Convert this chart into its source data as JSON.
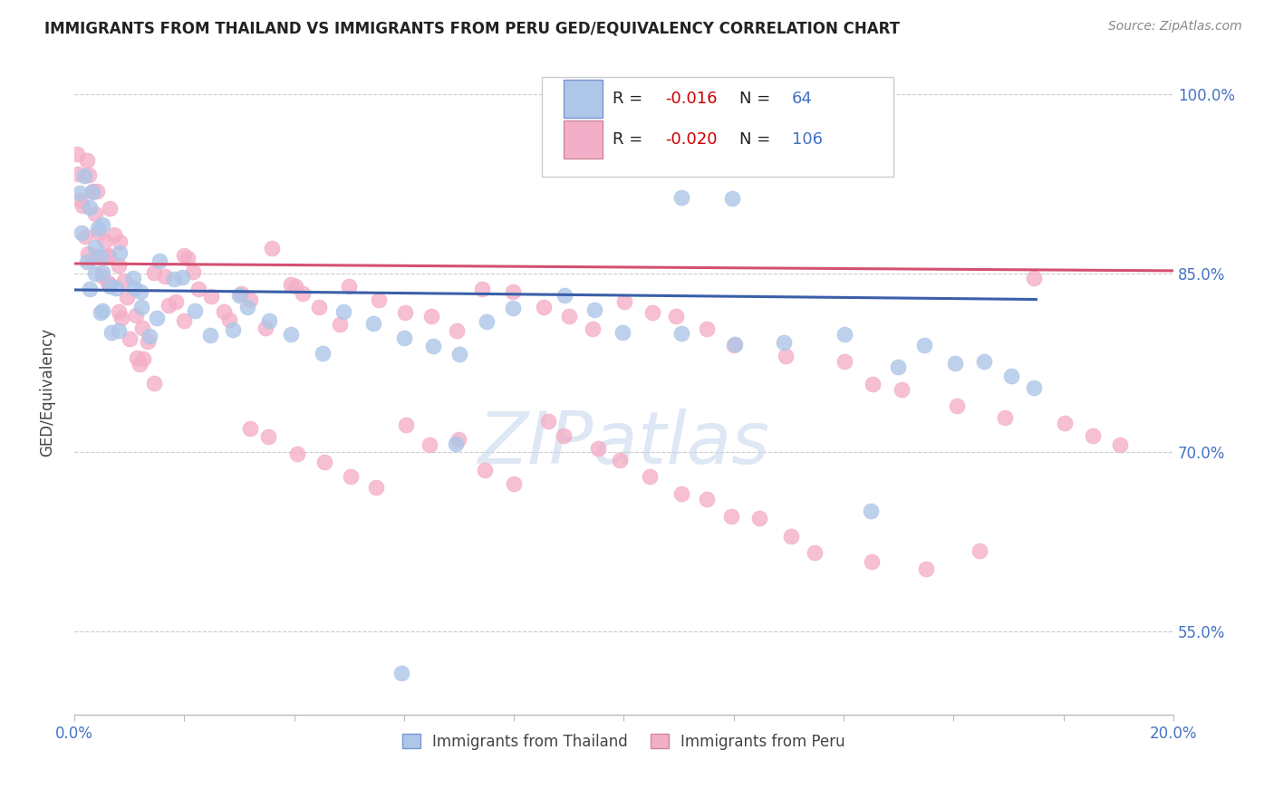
{
  "title": "IMMIGRANTS FROM THAILAND VS IMMIGRANTS FROM PERU GED/EQUIVALENCY CORRELATION CHART",
  "source_text": "Source: ZipAtlas.com",
  "ylabel": "GED/Equivalency",
  "xlim": [
    0.0,
    0.2
  ],
  "ylim": [
    0.48,
    1.02
  ],
  "ytick_positions": [
    0.55,
    0.7,
    0.85,
    1.0
  ],
  "ytick_labels": [
    "55.0%",
    "70.0%",
    "85.0%",
    "100.0%"
  ],
  "thailand_R": -0.016,
  "thailand_N": 64,
  "peru_R": -0.02,
  "peru_N": 106,
  "thailand_color": "#aec6e8",
  "peru_color": "#f4afc8",
  "thailand_line_color": "#3a5fa8",
  "peru_line_color": "#d45070",
  "watermark": "ZIPatlas",
  "background_color": "#ffffff",
  "th_line_x": [
    0.0,
    0.175
  ],
  "th_line_y": [
    0.836,
    0.828
  ],
  "peru_line_x": [
    0.0,
    0.2
  ],
  "peru_line_y": [
    0.858,
    0.852
  ],
  "thailand_pts_x": [
    0.001,
    0.001,
    0.002,
    0.002,
    0.002,
    0.003,
    0.003,
    0.003,
    0.004,
    0.004,
    0.005,
    0.005,
    0.005,
    0.006,
    0.006,
    0.007,
    0.007,
    0.008,
    0.008,
    0.009,
    0.01,
    0.011,
    0.012,
    0.013,
    0.014,
    0.015,
    0.016,
    0.018,
    0.02,
    0.022,
    0.025,
    0.028,
    0.03,
    0.032,
    0.035,
    0.04,
    0.045,
    0.05,
    0.055,
    0.06,
    0.065,
    0.07,
    0.075,
    0.08,
    0.09,
    0.095,
    0.1,
    0.11,
    0.12,
    0.13,
    0.14,
    0.15,
    0.155,
    0.16,
    0.165,
    0.17,
    0.175,
    0.09,
    0.095,
    0.11,
    0.12,
    0.145,
    0.06,
    0.07
  ],
  "thailand_pts_y": [
    0.88,
    0.91,
    0.86,
    0.9,
    0.93,
    0.84,
    0.87,
    0.91,
    0.85,
    0.88,
    0.83,
    0.86,
    0.89,
    0.82,
    0.85,
    0.81,
    0.84,
    0.8,
    0.83,
    0.87,
    0.85,
    0.84,
    0.83,
    0.82,
    0.8,
    0.81,
    0.86,
    0.84,
    0.85,
    0.82,
    0.8,
    0.81,
    0.83,
    0.82,
    0.81,
    0.8,
    0.79,
    0.82,
    0.81,
    0.8,
    0.79,
    0.78,
    0.8,
    0.82,
    0.83,
    0.82,
    0.81,
    0.8,
    0.79,
    0.78,
    0.8,
    0.77,
    0.79,
    0.78,
    0.77,
    0.76,
    0.75,
    0.96,
    0.95,
    0.92,
    0.91,
    0.64,
    0.52,
    0.71
  ],
  "peru_pts_x": [
    0.001,
    0.001,
    0.001,
    0.002,
    0.002,
    0.002,
    0.003,
    0.003,
    0.003,
    0.004,
    0.004,
    0.004,
    0.005,
    0.005,
    0.005,
    0.006,
    0.006,
    0.006,
    0.007,
    0.007,
    0.007,
    0.008,
    0.008,
    0.008,
    0.009,
    0.009,
    0.01,
    0.01,
    0.011,
    0.011,
    0.012,
    0.012,
    0.013,
    0.013,
    0.014,
    0.015,
    0.016,
    0.017,
    0.018,
    0.019,
    0.02,
    0.021,
    0.022,
    0.023,
    0.025,
    0.027,
    0.028,
    0.03,
    0.032,
    0.034,
    0.036,
    0.038,
    0.04,
    0.042,
    0.045,
    0.048,
    0.05,
    0.055,
    0.06,
    0.065,
    0.07,
    0.075,
    0.08,
    0.085,
    0.09,
    0.095,
    0.1,
    0.105,
    0.11,
    0.115,
    0.12,
    0.13,
    0.14,
    0.145,
    0.15,
    0.16,
    0.17,
    0.175,
    0.18,
    0.185,
    0.19,
    0.03,
    0.035,
    0.04,
    0.045,
    0.05,
    0.055,
    0.06,
    0.065,
    0.07,
    0.075,
    0.08,
    0.085,
    0.09,
    0.095,
    0.1,
    0.105,
    0.11,
    0.115,
    0.12,
    0.125,
    0.13,
    0.135,
    0.145,
    0.155,
    0.165
  ],
  "peru_pts_y": [
    0.9,
    0.93,
    0.96,
    0.88,
    0.91,
    0.94,
    0.87,
    0.9,
    0.93,
    0.86,
    0.89,
    0.92,
    0.85,
    0.88,
    0.91,
    0.84,
    0.87,
    0.9,
    0.83,
    0.86,
    0.89,
    0.82,
    0.85,
    0.88,
    0.81,
    0.84,
    0.8,
    0.83,
    0.79,
    0.82,
    0.78,
    0.81,
    0.77,
    0.8,
    0.76,
    0.85,
    0.84,
    0.83,
    0.82,
    0.81,
    0.87,
    0.86,
    0.85,
    0.84,
    0.83,
    0.82,
    0.81,
    0.83,
    0.82,
    0.81,
    0.86,
    0.85,
    0.84,
    0.83,
    0.82,
    0.81,
    0.84,
    0.83,
    0.82,
    0.81,
    0.8,
    0.84,
    0.83,
    0.82,
    0.81,
    0.8,
    0.83,
    0.82,
    0.81,
    0.8,
    0.79,
    0.78,
    0.77,
    0.76,
    0.75,
    0.74,
    0.73,
    0.84,
    0.72,
    0.71,
    0.7,
    0.72,
    0.71,
    0.7,
    0.69,
    0.68,
    0.67,
    0.72,
    0.71,
    0.7,
    0.69,
    0.68,
    0.72,
    0.71,
    0.7,
    0.69,
    0.68,
    0.67,
    0.66,
    0.65,
    0.64,
    0.63,
    0.62,
    0.61,
    0.6,
    0.62
  ]
}
